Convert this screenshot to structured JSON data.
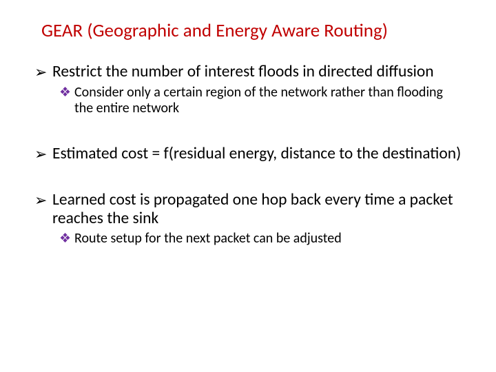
{
  "title": "GEAR (Geographic and Energy Aware Routing)",
  "colors": {
    "title": "#c00000",
    "l2_bullet": "#7030a0",
    "body_text": "#000000",
    "background": "#ffffff"
  },
  "bullets": {
    "l1_glyph": "➢",
    "l2_glyph": "❖"
  },
  "blocks": [
    {
      "l1": "Restrict the number of interest floods in directed diffusion",
      "l2": [
        "Consider only a certain region of the network rather than flooding the entire network"
      ]
    },
    {
      "l1": "Estimated cost = f(residual energy, distance to the destination)",
      "l2": []
    },
    {
      "l1": "Learned cost is propagated one hop back every time a packet reaches the sink",
      "l2": [
        "Route setup for the next packet can be adjusted"
      ]
    }
  ]
}
